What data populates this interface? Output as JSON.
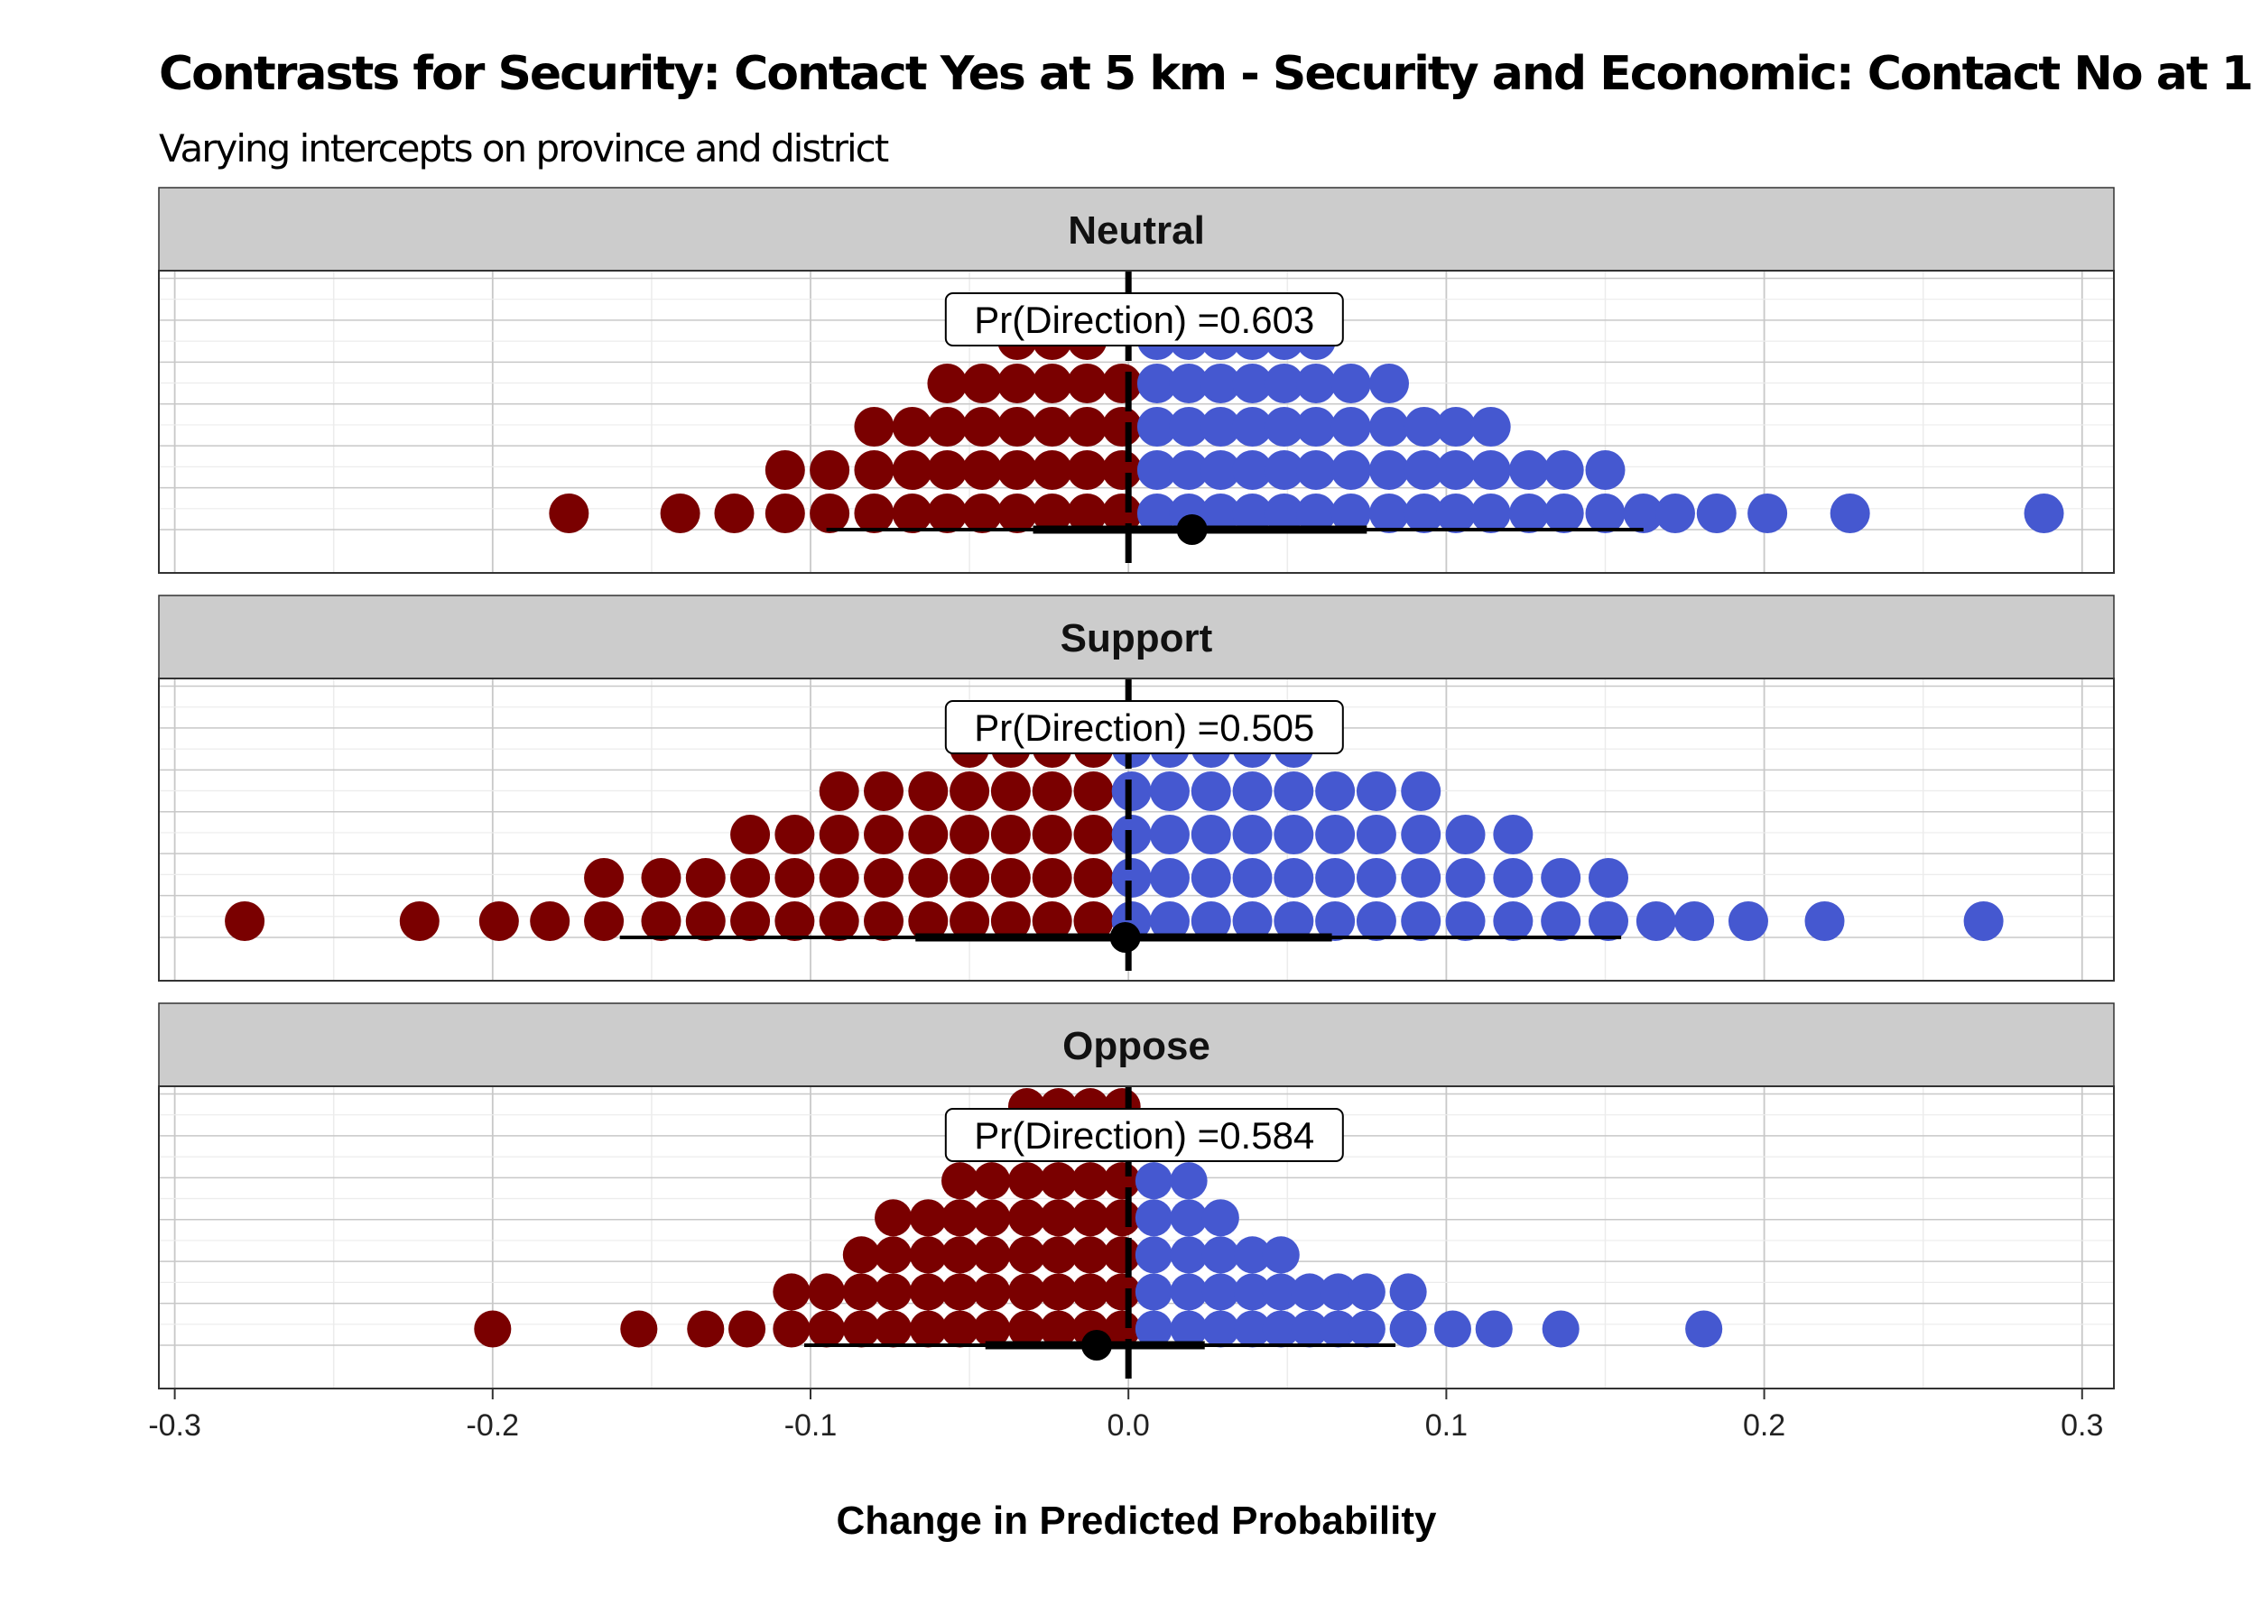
{
  "title": "Contrasts for Security: Contact Yes at 5 km - Security and Economic: Contact No at 1",
  "subtitle": "Varying intercepts on province and district",
  "colors": {
    "negative": "#7a0000",
    "positive": "#4558d0",
    "strip": "#cccccc",
    "grid_major": "#c8c8c8",
    "grid_minor": "#ececec",
    "reference_line": "#000000"
  },
  "chart_data": {
    "type": "dotplot",
    "xlabel": "Change in Predicted Probability",
    "xlim": [
      -0.305,
      0.31
    ],
    "x_ticks": [
      -0.3,
      -0.2,
      -0.1,
      0.0,
      0.1,
      0.2,
      0.3
    ],
    "x_tick_labels": [
      "-0.3",
      "-0.2",
      "-0.1",
      "0.0",
      "0.1",
      "0.2",
      "0.3"
    ],
    "reference_x": 0.0,
    "grid": true,
    "panels": [
      {
        "strip_label": "Neutral",
        "annotation": "Pr(Direction) =0.603",
        "point_estimate": 0.02,
        "interval_inner": [
          -0.03,
          0.075
        ],
        "interval_outer": [
          -0.095,
          0.162
        ],
        "dots": [
          [
            -0.176
          ],
          [
            -0.141
          ],
          [
            -0.124
          ],
          [
            -0.108,
            -0.108
          ],
          [
            -0.094,
            -0.094
          ],
          [
            -0.08,
            -0.08,
            -0.08
          ],
          [
            -0.068,
            -0.068,
            -0.068
          ],
          [
            -0.057,
            -0.057,
            -0.057,
            -0.057
          ],
          [
            -0.046,
            -0.046,
            -0.046,
            -0.046
          ],
          [
            -0.035,
            -0.035,
            -0.035,
            -0.035,
            -0.035
          ],
          [
            -0.024,
            -0.024,
            -0.024,
            -0.024,
            -0.024
          ],
          [
            -0.013,
            -0.013,
            -0.013,
            -0.013,
            -0.013
          ],
          [
            -0.002,
            -0.002,
            -0.002,
            -0.002
          ],
          [
            0.009,
            0.009,
            0.009,
            0.009,
            0.009
          ],
          [
            0.019,
            0.019,
            0.019,
            0.019,
            0.019
          ],
          [
            0.029,
            0.029,
            0.029,
            0.029,
            0.029
          ],
          [
            0.039,
            0.039,
            0.039,
            0.039,
            0.039
          ],
          [
            0.049,
            0.049,
            0.049,
            0.049,
            0.049
          ],
          [
            0.059,
            0.059,
            0.059,
            0.059,
            0.059
          ],
          [
            0.07,
            0.07,
            0.07,
            0.07
          ],
          [
            0.082,
            0.082,
            0.082,
            0.082
          ],
          [
            0.093,
            0.093,
            0.093
          ],
          [
            0.103,
            0.103,
            0.103
          ],
          [
            0.114,
            0.114,
            0.114
          ],
          [
            0.126,
            0.126
          ],
          [
            0.137,
            0.137
          ],
          [
            0.15,
            0.15
          ],
          [
            0.162
          ],
          [
            0.172
          ],
          [
            0.185
          ],
          [
            0.201
          ],
          [
            0.227
          ],
          [
            0.288
          ]
        ]
      },
      {
        "strip_label": "Support",
        "annotation": "Pr(Direction) =0.505",
        "point_estimate": -0.001,
        "interval_inner": [
          -0.067,
          0.064
        ],
        "interval_outer": [
          -0.16,
          0.155
        ],
        "dots": [
          [
            -0.278
          ],
          [
            -0.223
          ],
          [
            -0.198
          ],
          [
            -0.182
          ],
          [
            -0.165,
            -0.165
          ],
          [
            -0.147,
            -0.147
          ],
          [
            -0.133,
            -0.133
          ],
          [
            -0.119,
            -0.119,
            -0.119
          ],
          [
            -0.105,
            -0.105,
            -0.105
          ],
          [
            -0.091,
            -0.091,
            -0.091,
            -0.091
          ],
          [
            -0.077,
            -0.077,
            -0.077,
            -0.077
          ],
          [
            -0.063,
            -0.063,
            -0.063,
            -0.063
          ],
          [
            -0.05,
            -0.05,
            -0.05,
            -0.05,
            -0.05
          ],
          [
            -0.037,
            -0.037,
            -0.037,
            -0.037,
            -0.037
          ],
          [
            -0.024,
            -0.024,
            -0.024,
            -0.024,
            -0.024
          ],
          [
            -0.011,
            -0.011,
            -0.011,
            -0.011,
            -0.011
          ],
          [
            0.001,
            0.001,
            0.001,
            0.001,
            0.001
          ],
          [
            0.013,
            0.013,
            0.013,
            0.013,
            0.013
          ],
          [
            0.026,
            0.026,
            0.026,
            0.026,
            0.026
          ],
          [
            0.039,
            0.039,
            0.039,
            0.039,
            0.039
          ],
          [
            0.052,
            0.052,
            0.052,
            0.052,
            0.052
          ],
          [
            0.065,
            0.065,
            0.065,
            0.065
          ],
          [
            0.078,
            0.078,
            0.078,
            0.078
          ],
          [
            0.092,
            0.092,
            0.092,
            0.092
          ],
          [
            0.106,
            0.106,
            0.106
          ],
          [
            0.121,
            0.121,
            0.121
          ],
          [
            0.136,
            0.136
          ],
          [
            0.151,
            0.151
          ],
          [
            0.166
          ],
          [
            0.178
          ],
          [
            0.195
          ],
          [
            0.219
          ],
          [
            0.269
          ]
        ]
      },
      {
        "strip_label": "Oppose",
        "annotation": "Pr(Direction) =0.584",
        "point_estimate": -0.01,
        "interval_inner": [
          -0.045,
          0.024
        ],
        "interval_outer": [
          -0.102,
          0.084
        ],
        "dots": [
          [
            -0.2
          ],
          [
            -0.154
          ],
          [
            -0.133
          ],
          [
            -0.12
          ],
          [
            -0.106,
            -0.106
          ],
          [
            -0.095,
            -0.095
          ],
          [
            -0.084,
            -0.084,
            -0.084
          ],
          [
            -0.074,
            -0.074,
            -0.074,
            -0.074
          ],
          [
            -0.063,
            -0.063,
            -0.063,
            -0.063
          ],
          [
            -0.053,
            -0.053,
            -0.053,
            -0.053,
            -0.053
          ],
          [
            -0.043,
            -0.043,
            -0.043,
            -0.043,
            -0.043,
            -0.043
          ],
          [
            -0.032,
            -0.032,
            -0.032,
            -0.032,
            -0.032,
            -0.032,
            -0.032
          ],
          [
            -0.022,
            -0.022,
            -0.022,
            -0.022,
            -0.022,
            -0.022,
            -0.022
          ],
          [
            -0.012,
            -0.012,
            -0.012,
            -0.012,
            -0.012,
            -0.012,
            -0.012
          ],
          [
            -0.002,
            -0.002,
            -0.002,
            -0.002,
            -0.002,
            -0.002,
            -0.002
          ],
          [
            0.008,
            0.008,
            0.008,
            0.008,
            0.008,
            0.008
          ],
          [
            0.019,
            0.019,
            0.019,
            0.019,
            0.019
          ],
          [
            0.029,
            0.029,
            0.029,
            0.029
          ],
          [
            0.039,
            0.039,
            0.039
          ],
          [
            0.048,
            0.048,
            0.048
          ],
          [
            0.057,
            0.057
          ],
          [
            0.066,
            0.066
          ],
          [
            0.075,
            0.075
          ],
          [
            0.088,
            0.088
          ],
          [
            0.102
          ],
          [
            0.115
          ],
          [
            0.136
          ],
          [
            0.181
          ]
        ]
      }
    ]
  }
}
